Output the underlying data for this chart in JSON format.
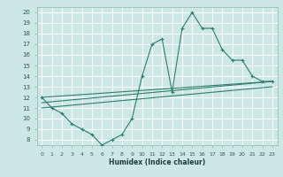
{
  "xlabel": "Humidex (Indice chaleur)",
  "background_color": "#cde8e4",
  "grid_color": "#ffffff",
  "line_color": "#2e7d6e",
  "xlim": [
    -0.5,
    23.5
  ],
  "ylim": [
    7.5,
    20.5
  ],
  "xticks": [
    0,
    1,
    2,
    3,
    4,
    5,
    6,
    7,
    8,
    9,
    10,
    11,
    12,
    13,
    14,
    15,
    16,
    17,
    18,
    19,
    20,
    21,
    22,
    23
  ],
  "yticks": [
    8,
    9,
    10,
    11,
    12,
    13,
    14,
    15,
    16,
    17,
    18,
    19,
    20
  ],
  "curve_x": [
    0,
    1,
    2,
    3,
    4,
    5,
    6,
    7,
    8,
    9,
    10,
    11,
    12,
    13,
    14,
    15,
    16,
    17,
    18,
    19,
    20,
    21,
    22,
    23
  ],
  "curve_y": [
    12,
    11,
    10.5,
    9.5,
    9,
    8.5,
    7.5,
    8,
    8.5,
    10,
    14,
    17,
    17.5,
    12.5,
    18.5,
    20,
    18.5,
    18.5,
    16.5,
    15.5,
    15.5,
    14,
    13.5,
    13.5
  ],
  "line2_x": [
    0,
    23
  ],
  "line2_y": [
    12,
    13.5
  ],
  "line3_x": [
    0,
    23
  ],
  "line3_y": [
    11.5,
    13.5
  ],
  "line4_x": [
    0,
    23
  ],
  "line4_y": [
    11,
    13.0
  ]
}
